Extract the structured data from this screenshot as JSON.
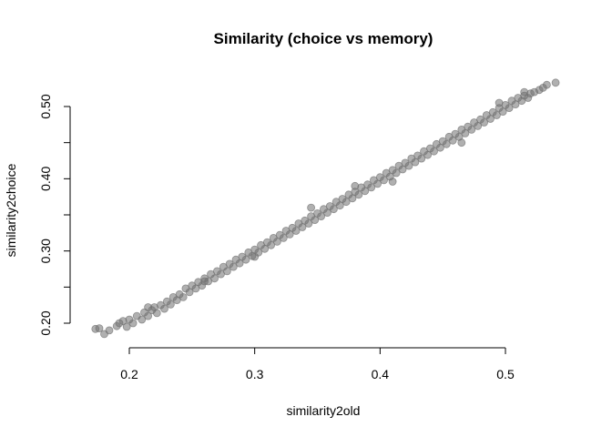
{
  "chart_data": {
    "type": "scatter",
    "title": "Similarity (choice vs memory)",
    "xlabel": "similarity2old",
    "ylabel": "similarity2choice",
    "xlim": [
      0.17,
      0.54
    ],
    "ylim": [
      0.18,
      0.535
    ],
    "x_ticks": [
      0.2,
      0.3,
      0.4,
      0.5
    ],
    "x_tick_labels": [
      "0.2",
      "0.3",
      "0.4",
      "0.5"
    ],
    "y_ticks": [
      0.2,
      0.25,
      0.3,
      0.35,
      0.4,
      0.45,
      0.5
    ],
    "y_tick_labels": [
      "0.20",
      "",
      "0.30",
      "",
      "0.40",
      "",
      "0.50"
    ],
    "grid": false,
    "legend": "none",
    "marker_color": "#707070",
    "series": [
      {
        "points": [
          [
            0.173,
            0.192
          ],
          [
            0.176,
            0.193
          ],
          [
            0.18,
            0.185
          ],
          [
            0.184,
            0.19
          ],
          [
            0.19,
            0.196
          ],
          [
            0.192,
            0.2
          ],
          [
            0.195,
            0.203
          ],
          [
            0.198,
            0.195
          ],
          [
            0.2,
            0.205
          ],
          [
            0.203,
            0.2
          ],
          [
            0.206,
            0.21
          ],
          [
            0.21,
            0.205
          ],
          [
            0.212,
            0.215
          ],
          [
            0.215,
            0.21
          ],
          [
            0.218,
            0.218
          ],
          [
            0.22,
            0.222
          ],
          [
            0.222,
            0.214
          ],
          [
            0.225,
            0.225
          ],
          [
            0.228,
            0.22
          ],
          [
            0.23,
            0.23
          ],
          [
            0.233,
            0.226
          ],
          [
            0.235,
            0.236
          ],
          [
            0.238,
            0.232
          ],
          [
            0.24,
            0.24
          ],
          [
            0.243,
            0.236
          ],
          [
            0.245,
            0.248
          ],
          [
            0.248,
            0.243
          ],
          [
            0.25,
            0.252
          ],
          [
            0.253,
            0.248
          ],
          [
            0.255,
            0.257
          ],
          [
            0.258,
            0.252
          ],
          [
            0.26,
            0.262
          ],
          [
            0.263,
            0.258
          ],
          [
            0.265,
            0.268
          ],
          [
            0.268,
            0.262
          ],
          [
            0.27,
            0.272
          ],
          [
            0.273,
            0.268
          ],
          [
            0.275,
            0.278
          ],
          [
            0.278,
            0.272
          ],
          [
            0.28,
            0.282
          ],
          [
            0.283,
            0.278
          ],
          [
            0.285,
            0.288
          ],
          [
            0.288,
            0.283
          ],
          [
            0.29,
            0.292
          ],
          [
            0.293,
            0.288
          ],
          [
            0.295,
            0.298
          ],
          [
            0.298,
            0.293
          ],
          [
            0.3,
            0.302
          ],
          [
            0.303,
            0.298
          ],
          [
            0.305,
            0.308
          ],
          [
            0.308,
            0.303
          ],
          [
            0.31,
            0.312
          ],
          [
            0.313,
            0.308
          ],
          [
            0.315,
            0.318
          ],
          [
            0.318,
            0.313
          ],
          [
            0.32,
            0.322
          ],
          [
            0.323,
            0.318
          ],
          [
            0.325,
            0.328
          ],
          [
            0.328,
            0.323
          ],
          [
            0.33,
            0.332
          ],
          [
            0.333,
            0.328
          ],
          [
            0.335,
            0.338
          ],
          [
            0.338,
            0.333
          ],
          [
            0.34,
            0.342
          ],
          [
            0.343,
            0.338
          ],
          [
            0.345,
            0.348
          ],
          [
            0.348,
            0.343
          ],
          [
            0.35,
            0.352
          ],
          [
            0.353,
            0.348
          ],
          [
            0.355,
            0.358
          ],
          [
            0.358,
            0.353
          ],
          [
            0.36,
            0.362
          ],
          [
            0.363,
            0.358
          ],
          [
            0.365,
            0.368
          ],
          [
            0.368,
            0.363
          ],
          [
            0.37,
            0.372
          ],
          [
            0.373,
            0.368
          ],
          [
            0.375,
            0.378
          ],
          [
            0.378,
            0.373
          ],
          [
            0.38,
            0.382
          ],
          [
            0.383,
            0.378
          ],
          [
            0.385,
            0.388
          ],
          [
            0.388,
            0.383
          ],
          [
            0.39,
            0.392
          ],
          [
            0.393,
            0.388
          ],
          [
            0.395,
            0.398
          ],
          [
            0.398,
            0.393
          ],
          [
            0.4,
            0.402
          ],
          [
            0.403,
            0.398
          ],
          [
            0.405,
            0.408
          ],
          [
            0.408,
            0.403
          ],
          [
            0.41,
            0.412
          ],
          [
            0.413,
            0.408
          ],
          [
            0.415,
            0.418
          ],
          [
            0.418,
            0.413
          ],
          [
            0.42,
            0.422
          ],
          [
            0.423,
            0.418
          ],
          [
            0.425,
            0.428
          ],
          [
            0.428,
            0.423
          ],
          [
            0.43,
            0.432
          ],
          [
            0.433,
            0.428
          ],
          [
            0.435,
            0.438
          ],
          [
            0.438,
            0.433
          ],
          [
            0.44,
            0.442
          ],
          [
            0.443,
            0.438
          ],
          [
            0.445,
            0.448
          ],
          [
            0.448,
            0.443
          ],
          [
            0.45,
            0.452
          ],
          [
            0.453,
            0.448
          ],
          [
            0.455,
            0.458
          ],
          [
            0.458,
            0.453
          ],
          [
            0.46,
            0.462
          ],
          [
            0.463,
            0.458
          ],
          [
            0.465,
            0.468
          ],
          [
            0.468,
            0.463
          ],
          [
            0.47,
            0.472
          ],
          [
            0.473,
            0.468
          ],
          [
            0.475,
            0.478
          ],
          [
            0.478,
            0.473
          ],
          [
            0.48,
            0.482
          ],
          [
            0.483,
            0.478
          ],
          [
            0.485,
            0.488
          ],
          [
            0.488,
            0.483
          ],
          [
            0.49,
            0.492
          ],
          [
            0.493,
            0.488
          ],
          [
            0.495,
            0.498
          ],
          [
            0.498,
            0.493
          ],
          [
            0.5,
            0.502
          ],
          [
            0.503,
            0.498
          ],
          [
            0.505,
            0.508
          ],
          [
            0.508,
            0.503
          ],
          [
            0.51,
            0.512
          ],
          [
            0.513,
            0.508
          ],
          [
            0.515,
            0.515
          ],
          [
            0.518,
            0.512
          ],
          [
            0.52,
            0.518
          ],
          [
            0.523,
            0.52
          ],
          [
            0.527,
            0.523
          ],
          [
            0.53,
            0.526
          ],
          [
            0.533,
            0.53
          ],
          [
            0.54,
            0.533
          ],
          [
            0.515,
            0.52
          ],
          [
            0.495,
            0.505
          ],
          [
            0.465,
            0.45
          ],
          [
            0.345,
            0.36
          ],
          [
            0.3,
            0.292
          ],
          [
            0.26,
            0.258
          ],
          [
            0.215,
            0.222
          ],
          [
            0.41,
            0.396
          ],
          [
            0.38,
            0.39
          ]
        ]
      }
    ]
  }
}
